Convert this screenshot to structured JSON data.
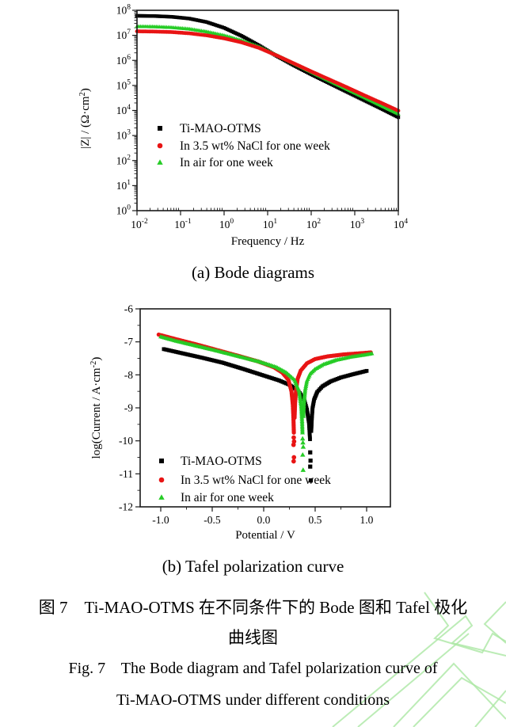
{
  "page": {
    "background": "#ffffff"
  },
  "colors": {
    "axis": "#1a1a1a",
    "text": "#000000",
    "watermark": "#abe7a4",
    "series_black": "#000000",
    "series_red": "#e81414",
    "series_green": "#26cc26"
  },
  "captions": {
    "a": "(a) Bode diagrams",
    "b": "(b) Tafel polarization curve",
    "zh_line1": "图 7　Ti-MAO-OTMS 在不同条件下的 Bode 图和 Tafel 极化",
    "zh_line2": "曲线图",
    "en_line1": "Fig. 7    The Bode diagram and Tafel polarization curve of",
    "en_line2": "Ti-MAO-OTMS under different conditions"
  },
  "chart_data": [
    {
      "type": "line",
      "name": "bode-diagram",
      "xscale": "log",
      "yscale": "log",
      "xlabel": "Frequency / Hz",
      "ylabel": "|Z| / (Ω·cm^2)",
      "ylabel_parts": [
        {
          "t": "|Z| / (Ω·cm"
        },
        {
          "t": "2",
          "sup": true
        },
        {
          "t": ")"
        }
      ],
      "xlim_log": [
        -2,
        4
      ],
      "ylim_log": [
        0,
        8
      ],
      "xticks_exp": [
        -2,
        -1,
        0,
        1,
        2,
        3,
        4
      ],
      "yticks_exp": [
        0,
        1,
        2,
        3,
        4,
        5,
        6,
        7,
        8
      ],
      "grid": false,
      "legend_position": "left-middle",
      "series": [
        {
          "name": "Ti-MAO-OTMS",
          "color": "#000000",
          "marker": "square",
          "points_log": [
            [
              -2,
              7.78
            ],
            [
              -1.6,
              7.77
            ],
            [
              -1.2,
              7.74
            ],
            [
              -0.8,
              7.67
            ],
            [
              -0.4,
              7.53
            ],
            [
              0,
              7.3
            ],
            [
              0.4,
              6.98
            ],
            [
              0.8,
              6.6
            ],
            [
              1.2,
              6.18
            ],
            [
              1.6,
              5.8
            ],
            [
              2,
              5.44
            ],
            [
              2.4,
              5.1
            ],
            [
              2.8,
              4.76
            ],
            [
              3.2,
              4.42
            ],
            [
              3.6,
              4.08
            ],
            [
              4,
              3.73
            ]
          ]
        },
        {
          "name": "In 3.5 wt% NaCl for one week",
          "color": "#e81414",
          "marker": "circle",
          "points_log": [
            [
              -2,
              7.16
            ],
            [
              -1.6,
              7.15
            ],
            [
              -1.2,
              7.13
            ],
            [
              -0.8,
              7.08
            ],
            [
              -0.4,
              7.0
            ],
            [
              0,
              6.88
            ],
            [
              0.4,
              6.72
            ],
            [
              0.8,
              6.5
            ],
            [
              1.2,
              6.2
            ],
            [
              1.6,
              5.88
            ],
            [
              2,
              5.56
            ],
            [
              2.4,
              5.25
            ],
            [
              2.8,
              4.94
            ],
            [
              3.2,
              4.62
            ],
            [
              3.6,
              4.31
            ],
            [
              4,
              3.99
            ]
          ]
        },
        {
          "name": "In air for one week",
          "color": "#26cc26",
          "marker": "triangle",
          "points_log": [
            [
              -2,
              7.36
            ],
            [
              -1.6,
              7.35
            ],
            [
              -1.2,
              7.32
            ],
            [
              -0.8,
              7.26
            ],
            [
              -0.4,
              7.15
            ],
            [
              0,
              7.0
            ],
            [
              0.4,
              6.8
            ],
            [
              0.8,
              6.55
            ],
            [
              1.2,
              6.22
            ],
            [
              1.6,
              5.88
            ],
            [
              2,
              5.54
            ],
            [
              2.4,
              5.2
            ],
            [
              2.8,
              4.87
            ],
            [
              3.2,
              4.54
            ],
            [
              3.6,
              4.2
            ],
            [
              4,
              3.87
            ]
          ]
        }
      ]
    },
    {
      "type": "line",
      "name": "tafel-polarization",
      "xscale": "linear",
      "yscale": "linear",
      "xlabel": "Potential / V",
      "ylabel": "log(Current / A·cm^-2)",
      "ylabel_parts": [
        {
          "t": "log(Current / A·cm"
        },
        {
          "t": "-2",
          "sup": true
        },
        {
          "t": ")"
        }
      ],
      "xlim": [
        -1.2,
        1.2308
      ],
      "ylim": [
        -12,
        -6
      ],
      "xticks": [
        -1.0,
        -0.5,
        0.0,
        0.5,
        1.0
      ],
      "xtick_labels": [
        "-1.0",
        "-0.5",
        "0.0",
        "0.5",
        "1.0"
      ],
      "yticks": [
        -6,
        -7,
        -8,
        -9,
        -10,
        -11,
        -12
      ],
      "grid": false,
      "legend_position": "left-bottom",
      "series": [
        {
          "name": "Ti-MAO-OTMS",
          "color": "#000000",
          "marker": "square",
          "ecorr_v": 0.45,
          "branches": [
            [
              [
                -0.97,
                -7.22
              ],
              [
                -0.8,
                -7.34
              ],
              [
                -0.6,
                -7.48
              ],
              [
                -0.4,
                -7.63
              ],
              [
                -0.2,
                -7.82
              ],
              [
                0,
                -8.02
              ],
              [
                0.15,
                -8.17
              ],
              [
                0.25,
                -8.3
              ],
              [
                0.33,
                -8.47
              ],
              [
                0.39,
                -8.72
              ],
              [
                0.42,
                -9.05
              ],
              [
                0.44,
                -9.45
              ],
              [
                0.45,
                -9.95
              ]
            ],
            [
              [
                0.462,
                -9.7
              ],
              [
                0.468,
                -9.3
              ],
              [
                0.475,
                -9.0
              ],
              [
                0.49,
                -8.75
              ],
              [
                0.52,
                -8.52
              ],
              [
                0.57,
                -8.35
              ],
              [
                0.65,
                -8.2
              ],
              [
                0.75,
                -8.08
              ],
              [
                0.87,
                -7.98
              ],
              [
                1.0,
                -7.88
              ]
            ]
          ],
          "scatter": [
            [
              0.452,
              -10.35
            ],
            [
              0.455,
              -10.6
            ],
            [
              0.452,
              -10.78
            ],
            [
              0.458,
              -11.2
            ]
          ]
        },
        {
          "name": "In 3.5 wt% NaCl for one week",
          "color": "#e81414",
          "marker": "circle",
          "ecorr_v": 0.29,
          "branches": [
            [
              [
                -1.02,
                -6.78
              ],
              [
                -0.85,
                -6.92
              ],
              [
                -0.65,
                -7.08
              ],
              [
                -0.45,
                -7.25
              ],
              [
                -0.25,
                -7.42
              ],
              [
                -0.05,
                -7.6
              ],
              [
                0.1,
                -7.77
              ],
              [
                0.18,
                -7.93
              ],
              [
                0.24,
                -8.15
              ],
              [
                0.27,
                -8.5
              ],
              [
                0.283,
                -8.9
              ],
              [
                0.29,
                -9.4
              ],
              [
                0.293,
                -9.75
              ]
            ],
            [
              [
                0.3,
                -9.3
              ],
              [
                0.305,
                -8.85
              ],
              [
                0.315,
                -8.45
              ],
              [
                0.33,
                -8.12
              ],
              [
                0.36,
                -7.87
              ],
              [
                0.42,
                -7.65
              ],
              [
                0.5,
                -7.52
              ],
              [
                0.62,
                -7.44
              ],
              [
                0.78,
                -7.38
              ],
              [
                0.92,
                -7.35
              ],
              [
                1.04,
                -7.32
              ]
            ]
          ],
          "scatter": [
            [
              0.292,
              -9.9
            ],
            [
              0.295,
              -10.02
            ],
            [
              0.29,
              -10.12
            ],
            [
              0.294,
              -10.5
            ],
            [
              0.291,
              -10.62
            ]
          ]
        },
        {
          "name": "In air for one week",
          "color": "#26cc26",
          "marker": "triangle",
          "ecorr_v": 0.38,
          "branches": [
            [
              [
                -1.0,
                -6.84
              ],
              [
                -0.85,
                -6.97
              ],
              [
                -0.65,
                -7.12
              ],
              [
                -0.45,
                -7.27
              ],
              [
                -0.25,
                -7.43
              ],
              [
                -0.05,
                -7.59
              ],
              [
                0.12,
                -7.76
              ],
              [
                0.22,
                -7.93
              ],
              [
                0.3,
                -8.15
              ],
              [
                0.345,
                -8.5
              ],
              [
                0.365,
                -8.95
              ],
              [
                0.373,
                -9.4
              ],
              [
                0.377,
                -9.75
              ]
            ],
            [
              [
                0.385,
                -9.25
              ],
              [
                0.392,
                -8.8
              ],
              [
                0.403,
                -8.45
              ],
              [
                0.42,
                -8.18
              ],
              [
                0.45,
                -7.97
              ],
              [
                0.5,
                -7.82
              ],
              [
                0.58,
                -7.68
              ],
              [
                0.7,
                -7.55
              ],
              [
                0.85,
                -7.45
              ],
              [
                1.0,
                -7.38
              ],
              [
                1.05,
                -7.35
              ]
            ]
          ],
          "scatter": [
            [
              0.378,
              -9.93
            ],
            [
              0.381,
              -10.05
            ],
            [
              0.384,
              -10.18
            ],
            [
              0.379,
              -10.42
            ],
            [
              0.383,
              -10.88
            ]
          ]
        }
      ]
    }
  ]
}
